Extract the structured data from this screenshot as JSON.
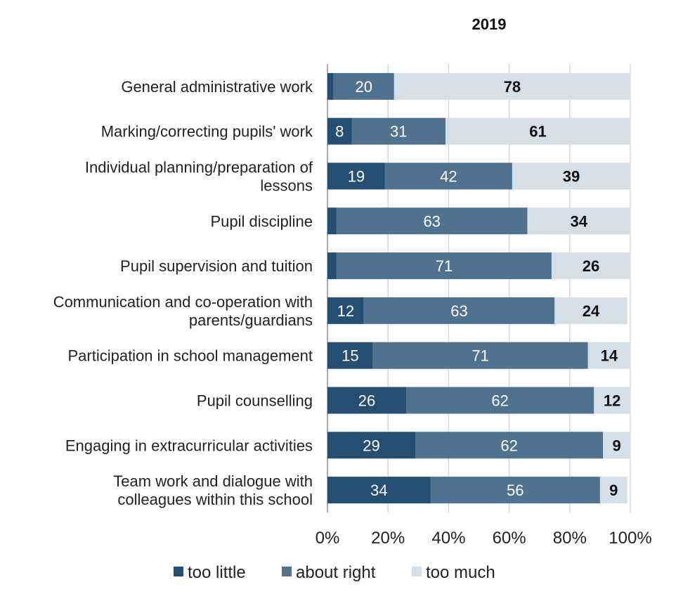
{
  "chart_data": {
    "type": "bar",
    "orientation": "horizontal",
    "stacked": true,
    "title": "2019",
    "xlim": [
      0,
      100
    ],
    "xticks": [
      "0%",
      "20%",
      "40%",
      "60%",
      "80%",
      "100%"
    ],
    "grid": "vertical gridlines",
    "legend_position": "bottom",
    "categories": [
      [
        "General administrative work"
      ],
      [
        "Marking/correcting pupils' work"
      ],
      [
        "Individual planning/preparation of",
        "lessons"
      ],
      [
        "Pupil discipline"
      ],
      [
        "Pupil supervision and tuition"
      ],
      [
        "Communication and co-operation with",
        "parents/guardians"
      ],
      [
        "Participation in school management"
      ],
      [
        "Pupil counselling"
      ],
      [
        "Engaging in extracurricular activities"
      ],
      [
        "Team work and dialogue with",
        "colleagues within this school"
      ]
    ],
    "series": [
      {
        "name": "too little",
        "color": "#244f72",
        "label_color": "#ffffff",
        "values": [
          2,
          8,
          19,
          3,
          3,
          12,
          15,
          26,
          29,
          34
        ],
        "labels": [
          "",
          "8",
          "19",
          "",
          "",
          "12",
          "15",
          "26",
          "29",
          "34"
        ]
      },
      {
        "name": "about right",
        "color": "#4f7291",
        "label_color": "#ffffff",
        "values": [
          20,
          31,
          42,
          63,
          71,
          63,
          71,
          62,
          62,
          56
        ],
        "labels": [
          "20",
          "31",
          "42",
          "63",
          "71",
          "63",
          "71",
          "62",
          "62",
          "56"
        ]
      },
      {
        "name": "too much",
        "color": "#d5dfe8",
        "label_color": "#111111",
        "values": [
          78,
          61,
          39,
          34,
          26,
          24,
          14,
          12,
          9,
          9
        ],
        "labels": [
          "78",
          "61",
          "39",
          "34",
          "26",
          "24",
          "14",
          "12",
          "9",
          "9"
        ]
      }
    ]
  }
}
